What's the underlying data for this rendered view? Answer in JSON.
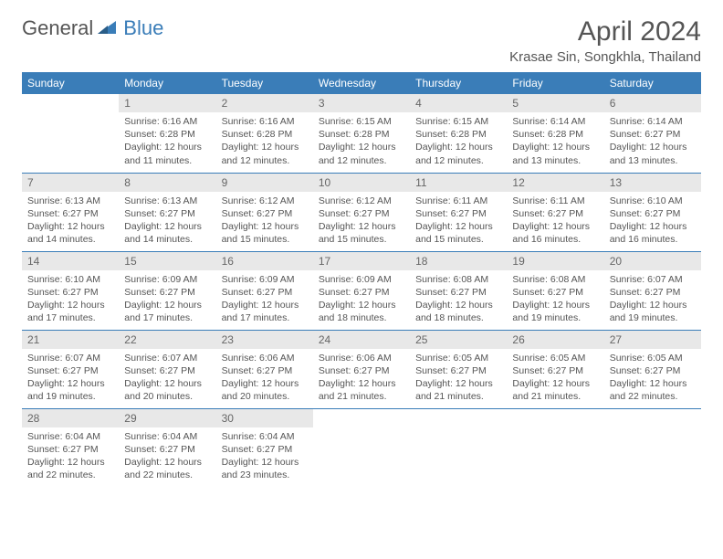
{
  "logo": {
    "general": "General",
    "blue": "Blue"
  },
  "title": "April 2024",
  "location": "Krasae Sin, Songkhla, Thailand",
  "colors": {
    "header_bg": "#3a7db8",
    "header_text": "#ffffff",
    "daynum_bg": "#e8e8e8",
    "text": "#555555",
    "border": "#3a7db8"
  },
  "dayHeaders": [
    "Sunday",
    "Monday",
    "Tuesday",
    "Wednesday",
    "Thursday",
    "Friday",
    "Saturday"
  ],
  "weeks": [
    [
      {
        "n": "",
        "sr": "",
        "ss": "",
        "dl": ""
      },
      {
        "n": "1",
        "sr": "Sunrise: 6:16 AM",
        "ss": "Sunset: 6:28 PM",
        "dl": "Daylight: 12 hours and 11 minutes."
      },
      {
        "n": "2",
        "sr": "Sunrise: 6:16 AM",
        "ss": "Sunset: 6:28 PM",
        "dl": "Daylight: 12 hours and 12 minutes."
      },
      {
        "n": "3",
        "sr": "Sunrise: 6:15 AM",
        "ss": "Sunset: 6:28 PM",
        "dl": "Daylight: 12 hours and 12 minutes."
      },
      {
        "n": "4",
        "sr": "Sunrise: 6:15 AM",
        "ss": "Sunset: 6:28 PM",
        "dl": "Daylight: 12 hours and 12 minutes."
      },
      {
        "n": "5",
        "sr": "Sunrise: 6:14 AM",
        "ss": "Sunset: 6:28 PM",
        "dl": "Daylight: 12 hours and 13 minutes."
      },
      {
        "n": "6",
        "sr": "Sunrise: 6:14 AM",
        "ss": "Sunset: 6:27 PM",
        "dl": "Daylight: 12 hours and 13 minutes."
      }
    ],
    [
      {
        "n": "7",
        "sr": "Sunrise: 6:13 AM",
        "ss": "Sunset: 6:27 PM",
        "dl": "Daylight: 12 hours and 14 minutes."
      },
      {
        "n": "8",
        "sr": "Sunrise: 6:13 AM",
        "ss": "Sunset: 6:27 PM",
        "dl": "Daylight: 12 hours and 14 minutes."
      },
      {
        "n": "9",
        "sr": "Sunrise: 6:12 AM",
        "ss": "Sunset: 6:27 PM",
        "dl": "Daylight: 12 hours and 15 minutes."
      },
      {
        "n": "10",
        "sr": "Sunrise: 6:12 AM",
        "ss": "Sunset: 6:27 PM",
        "dl": "Daylight: 12 hours and 15 minutes."
      },
      {
        "n": "11",
        "sr": "Sunrise: 6:11 AM",
        "ss": "Sunset: 6:27 PM",
        "dl": "Daylight: 12 hours and 15 minutes."
      },
      {
        "n": "12",
        "sr": "Sunrise: 6:11 AM",
        "ss": "Sunset: 6:27 PM",
        "dl": "Daylight: 12 hours and 16 minutes."
      },
      {
        "n": "13",
        "sr": "Sunrise: 6:10 AM",
        "ss": "Sunset: 6:27 PM",
        "dl": "Daylight: 12 hours and 16 minutes."
      }
    ],
    [
      {
        "n": "14",
        "sr": "Sunrise: 6:10 AM",
        "ss": "Sunset: 6:27 PM",
        "dl": "Daylight: 12 hours and 17 minutes."
      },
      {
        "n": "15",
        "sr": "Sunrise: 6:09 AM",
        "ss": "Sunset: 6:27 PM",
        "dl": "Daylight: 12 hours and 17 minutes."
      },
      {
        "n": "16",
        "sr": "Sunrise: 6:09 AM",
        "ss": "Sunset: 6:27 PM",
        "dl": "Daylight: 12 hours and 17 minutes."
      },
      {
        "n": "17",
        "sr": "Sunrise: 6:09 AM",
        "ss": "Sunset: 6:27 PM",
        "dl": "Daylight: 12 hours and 18 minutes."
      },
      {
        "n": "18",
        "sr": "Sunrise: 6:08 AM",
        "ss": "Sunset: 6:27 PM",
        "dl": "Daylight: 12 hours and 18 minutes."
      },
      {
        "n": "19",
        "sr": "Sunrise: 6:08 AM",
        "ss": "Sunset: 6:27 PM",
        "dl": "Daylight: 12 hours and 19 minutes."
      },
      {
        "n": "20",
        "sr": "Sunrise: 6:07 AM",
        "ss": "Sunset: 6:27 PM",
        "dl": "Daylight: 12 hours and 19 minutes."
      }
    ],
    [
      {
        "n": "21",
        "sr": "Sunrise: 6:07 AM",
        "ss": "Sunset: 6:27 PM",
        "dl": "Daylight: 12 hours and 19 minutes."
      },
      {
        "n": "22",
        "sr": "Sunrise: 6:07 AM",
        "ss": "Sunset: 6:27 PM",
        "dl": "Daylight: 12 hours and 20 minutes."
      },
      {
        "n": "23",
        "sr": "Sunrise: 6:06 AM",
        "ss": "Sunset: 6:27 PM",
        "dl": "Daylight: 12 hours and 20 minutes."
      },
      {
        "n": "24",
        "sr": "Sunrise: 6:06 AM",
        "ss": "Sunset: 6:27 PM",
        "dl": "Daylight: 12 hours and 21 minutes."
      },
      {
        "n": "25",
        "sr": "Sunrise: 6:05 AM",
        "ss": "Sunset: 6:27 PM",
        "dl": "Daylight: 12 hours and 21 minutes."
      },
      {
        "n": "26",
        "sr": "Sunrise: 6:05 AM",
        "ss": "Sunset: 6:27 PM",
        "dl": "Daylight: 12 hours and 21 minutes."
      },
      {
        "n": "27",
        "sr": "Sunrise: 6:05 AM",
        "ss": "Sunset: 6:27 PM",
        "dl": "Daylight: 12 hours and 22 minutes."
      }
    ],
    [
      {
        "n": "28",
        "sr": "Sunrise: 6:04 AM",
        "ss": "Sunset: 6:27 PM",
        "dl": "Daylight: 12 hours and 22 minutes."
      },
      {
        "n": "29",
        "sr": "Sunrise: 6:04 AM",
        "ss": "Sunset: 6:27 PM",
        "dl": "Daylight: 12 hours and 22 minutes."
      },
      {
        "n": "30",
        "sr": "Sunrise: 6:04 AM",
        "ss": "Sunset: 6:27 PM",
        "dl": "Daylight: 12 hours and 23 minutes."
      },
      {
        "n": "",
        "sr": "",
        "ss": "",
        "dl": ""
      },
      {
        "n": "",
        "sr": "",
        "ss": "",
        "dl": ""
      },
      {
        "n": "",
        "sr": "",
        "ss": "",
        "dl": ""
      },
      {
        "n": "",
        "sr": "",
        "ss": "",
        "dl": ""
      }
    ]
  ]
}
